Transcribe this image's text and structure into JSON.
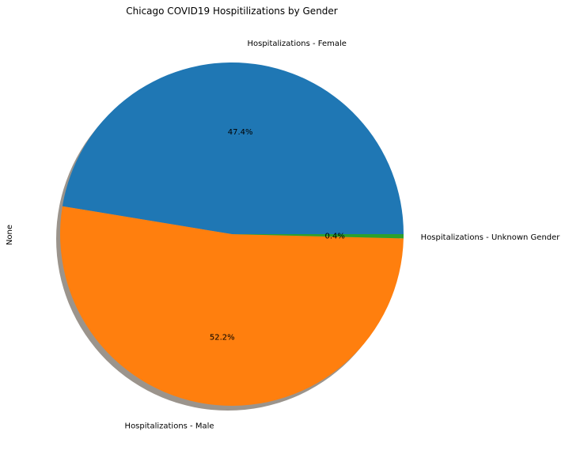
{
  "chart_data": {
    "type": "pie",
    "title": "Chicago COVID19 Hospitilizations by Gender",
    "ylabel": "None",
    "shadow": true,
    "slices": [
      {
        "label": "Hospitalizations - Female",
        "value": 47.4,
        "pct_label": "47.4%",
        "color": "#1f77b4"
      },
      {
        "label": "Hospitalizations - Male",
        "value": 52.2,
        "pct_label": "52.2%",
        "color": "#ff7f0e"
      },
      {
        "label": "Hospitalizations - Unknown Gender",
        "value": 0.4,
        "pct_label": "0.4%",
        "color": "#2ca02c"
      }
    ]
  }
}
